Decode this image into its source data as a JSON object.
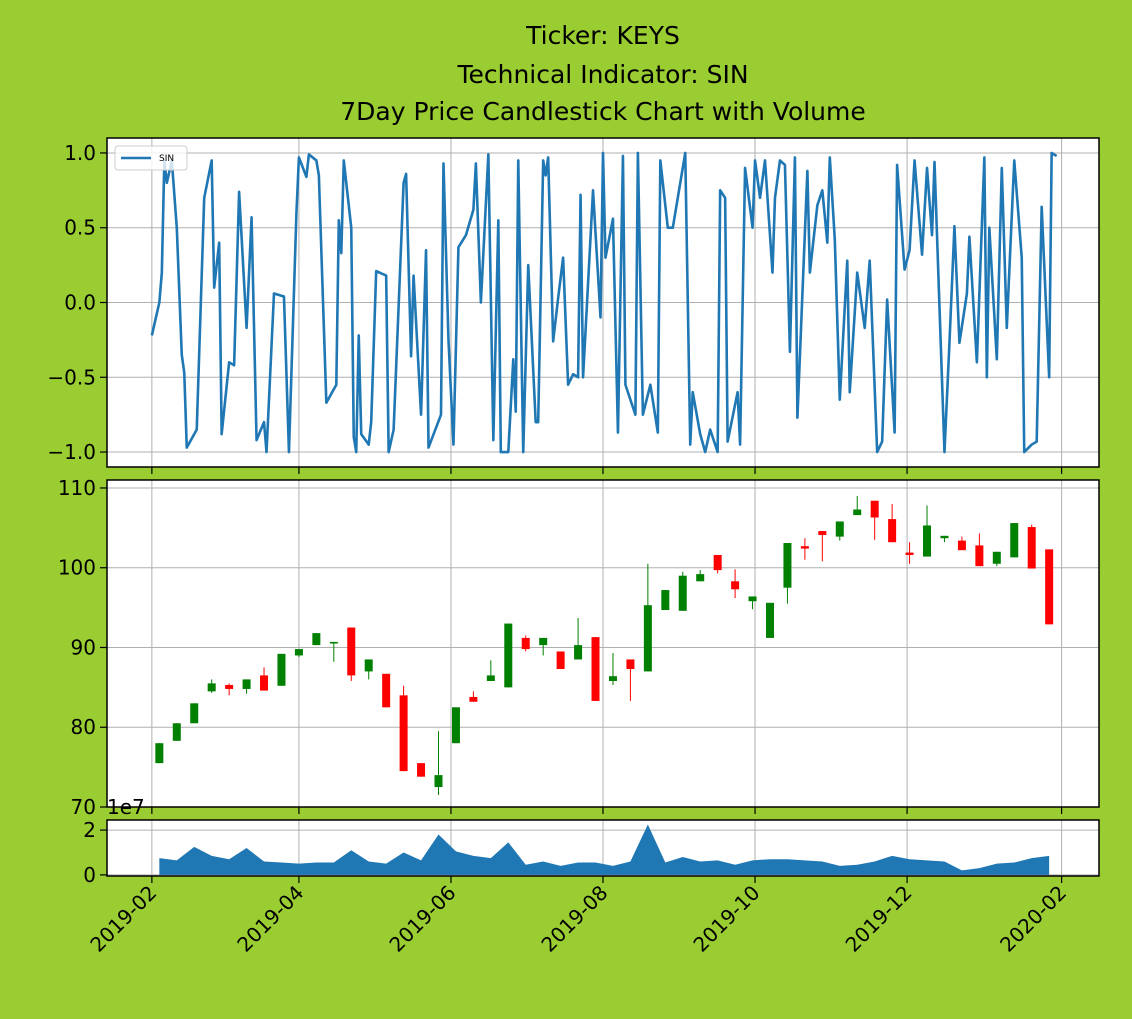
{
  "title": [
    "Ticker: KEYS",
    "Technical Indicator: SIN",
    "7Day Price Candlestick Chart with Volume"
  ],
  "x_axis": {
    "xlim": [
      "2019-01-14",
      "2020-02-16"
    ],
    "xticks": [
      {
        "value": "2019-02-01",
        "label": "2019-02"
      },
      {
        "value": "2019-04-01",
        "label": "2019-04"
      },
      {
        "value": "2019-06-01",
        "label": "2019-06"
      },
      {
        "value": "2019-08-01",
        "label": "2019-08"
      },
      {
        "value": "2019-10-01",
        "label": "2019-10"
      },
      {
        "value": "2019-12-01",
        "label": "2019-12"
      },
      {
        "value": "2020-02-01",
        "label": "2020-02"
      }
    ],
    "grid": true
  },
  "chart_data": [
    {
      "type": "line",
      "legend": "upper left",
      "grid": true,
      "ylim": [
        -1.1,
        1.1
      ],
      "yticks": [
        {
          "value": -1.0,
          "label": "−1.0"
        },
        {
          "value": -0.5,
          "label": "−0.5"
        },
        {
          "value": 0.0,
          "label": "0.0"
        },
        {
          "value": 0.5,
          "label": "0.5"
        },
        {
          "value": 1.0,
          "label": "1.0"
        }
      ],
      "x": [
        "2019-02-01",
        "2019-02-04",
        "2019-02-05",
        "2019-02-06",
        "2019-02-07",
        "2019-02-09",
        "2019-02-11",
        "2019-02-13",
        "2019-02-14",
        "2019-02-15",
        "2019-02-19",
        "2019-02-22",
        "2019-02-25",
        "2019-02-26",
        "2019-02-28",
        "2019-03-01",
        "2019-03-04",
        "2019-03-06",
        "2019-03-08",
        "2019-03-11",
        "2019-03-13",
        "2019-03-15",
        "2019-03-18",
        "2019-03-19",
        "2019-03-22",
        "2019-03-26",
        "2019-03-27",
        "2019-03-28",
        "2019-03-31",
        "2019-04-01",
        "2019-04-04",
        "2019-04-05",
        "2019-04-08",
        "2019-04-09",
        "2019-04-12",
        "2019-04-16",
        "2019-04-17",
        "2019-04-18",
        "2019-04-19",
        "2019-04-22",
        "2019-04-23",
        "2019-04-24",
        "2019-04-25",
        "2019-04-26",
        "2019-04-29",
        "2019-04-30",
        "2019-05-02",
        "2019-05-06",
        "2019-05-07",
        "2019-05-09",
        "2019-05-13",
        "2019-05-14",
        "2019-05-16",
        "2019-05-17",
        "2019-05-20",
        "2019-05-22",
        "2019-05-23",
        "2019-05-28",
        "2019-05-29",
        "2019-05-31",
        "2019-06-02",
        "2019-06-04",
        "2019-06-07",
        "2019-06-10",
        "2019-06-11",
        "2019-06-13",
        "2019-06-16",
        "2019-06-18",
        "2019-06-20",
        "2019-06-21",
        "2019-06-24",
        "2019-06-26",
        "2019-06-27",
        "2019-06-28",
        "2019-06-30",
        "2019-07-02",
        "2019-07-05",
        "2019-07-06",
        "2019-07-08",
        "2019-07-09",
        "2019-07-10",
        "2019-07-12",
        "2019-07-14",
        "2019-07-16",
        "2019-07-18",
        "2019-07-20",
        "2019-07-22",
        "2019-07-23",
        "2019-07-24",
        "2019-07-28",
        "2019-07-31",
        "2019-08-01",
        "2019-08-02",
        "2019-08-05",
        "2019-08-07",
        "2019-08-09",
        "2019-08-10",
        "2019-08-14",
        "2019-08-15",
        "2019-08-17",
        "2019-08-20",
        "2019-08-23",
        "2019-08-24",
        "2019-08-27",
        "2019-08-29",
        "2019-09-03",
        "2019-09-05",
        "2019-09-06",
        "2019-09-09",
        "2019-09-11",
        "2019-09-13",
        "2019-09-16",
        "2019-09-17",
        "2019-09-19",
        "2019-09-20",
        "2019-09-24",
        "2019-09-25",
        "2019-09-27",
        "2019-09-30",
        "2019-10-01",
        "2019-10-03",
        "2019-10-05",
        "2019-10-08",
        "2019-10-09",
        "2019-10-11",
        "2019-10-13",
        "2019-10-15",
        "2019-10-17",
        "2019-10-18",
        "2019-10-22",
        "2019-10-23",
        "2019-10-26",
        "2019-10-28",
        "2019-10-30",
        "2019-10-31",
        "2019-11-02",
        "2019-11-04",
        "2019-11-07",
        "2019-11-08",
        "2019-11-11",
        "2019-11-14",
        "2019-11-16",
        "2019-11-19",
        "2019-11-21",
        "2019-11-23",
        "2019-11-26",
        "2019-11-27",
        "2019-11-30",
        "2019-12-02",
        "2019-12-04",
        "2019-12-07",
        "2019-12-09",
        "2019-12-11",
        "2019-12-12",
        "2019-12-16",
        "2019-12-18",
        "2019-12-20",
        "2019-12-22",
        "2019-12-25",
        "2019-12-26",
        "2019-12-29",
        "2020-01-01",
        "2020-01-02",
        "2020-01-03",
        "2020-01-06",
        "2020-01-08",
        "2020-01-10",
        "2020-01-13",
        "2020-01-16",
        "2020-01-17",
        "2020-01-20",
        "2020-01-22",
        "2020-01-24",
        "2020-01-27",
        "2020-01-28",
        "2020-01-30"
      ],
      "series": [
        {
          "name": "SIN",
          "color": "#1f77b4",
          "values": [
            -0.22,
            0,
            0.2,
            0.95,
            0.8,
            0.95,
            0.5,
            -0.35,
            -0.47,
            -0.97,
            -0.85,
            0.7,
            0.95,
            0.1,
            0.4,
            -0.88,
            -0.4,
            -0.42,
            0.74,
            -0.17,
            0.57,
            -0.92,
            -0.8,
            -1.0,
            0.06,
            0.04,
            -0.48,
            -1.0,
            0.6,
            0.97,
            0.84,
            0.99,
            0.95,
            0.85,
            -0.67,
            -0.55,
            0.55,
            0.33,
            0.95,
            0.5,
            -0.9,
            -1.0,
            -0.22,
            -0.88,
            -0.95,
            -0.8,
            0.21,
            0.18,
            -1.0,
            -0.85,
            0.8,
            0.86,
            -0.36,
            0.18,
            -0.75,
            0.35,
            -0.97,
            -0.75,
            0.93,
            -0.25,
            -0.95,
            0.37,
            0.45,
            0.62,
            0.93,
            0,
            0.99,
            -0.92,
            0.55,
            -1.0,
            -1.0,
            -0.38,
            -0.73,
            0.95,
            -1.0,
            0.25,
            -0.8,
            -0.8,
            0.95,
            0.85,
            0.97,
            -0.26,
            0.03,
            0.3,
            -0.55,
            -0.48,
            -0.5,
            0.72,
            -0.5,
            0.75,
            -0.1,
            1.0,
            0.3,
            0.56,
            -0.87,
            0.98,
            -0.55,
            -0.75,
            1.0,
            -0.75,
            -0.55,
            -0.87,
            0.95,
            0.5,
            0.5,
            1.0,
            -0.95,
            -0.6,
            -0.88,
            -1.0,
            -0.85,
            -1.0,
            0.75,
            0.7,
            -0.93,
            -0.6,
            -0.95,
            0.9,
            0.5,
            0.95,
            0.7,
            0.95,
            0.2,
            0.7,
            0.95,
            0.92,
            -0.33,
            0.97,
            -0.77,
            0.88,
            0.2,
            0.65,
            0.75,
            0.4,
            0.97,
            0.42,
            -0.65,
            0.28,
            -0.6,
            0.2,
            -0.17,
            0.28,
            -1.0,
            -0.93,
            0.02,
            -0.87,
            0.92,
            0.22,
            0.35,
            0.95,
            0.32,
            0.9,
            0.45,
            0.94,
            -1.0,
            -0.27,
            0.51,
            -0.27,
            0.06,
            0.44,
            -0.4,
            0.97,
            -0.5,
            0.5,
            -0.38,
            0.9,
            -0.17,
            0.95,
            0.3,
            -1.0,
            -0.95,
            -0.93,
            0.64,
            -0.5,
            1.0,
            0.98
          ]
        }
      ]
    },
    {
      "type": "candlestick",
      "grid": true,
      "up_color": "green",
      "down_color": "red",
      "ylim": [
        70,
        111
      ],
      "yticks": [
        70,
        80,
        90,
        100,
        110
      ],
      "x": [
        "2019-02-04",
        "2019-02-11",
        "2019-02-18",
        "2019-02-25",
        "2019-03-04",
        "2019-03-11",
        "2019-03-18",
        "2019-03-25",
        "2019-04-01",
        "2019-04-08",
        "2019-04-15",
        "2019-04-22",
        "2019-04-29",
        "2019-05-06",
        "2019-05-13",
        "2019-05-20",
        "2019-05-27",
        "2019-06-03",
        "2019-06-10",
        "2019-06-17",
        "2019-06-24",
        "2019-07-01",
        "2019-07-08",
        "2019-07-15",
        "2019-07-22",
        "2019-07-29",
        "2019-08-05",
        "2019-08-12",
        "2019-08-19",
        "2019-08-26",
        "2019-09-02",
        "2019-09-09",
        "2019-09-16",
        "2019-09-23",
        "2019-09-30",
        "2019-10-07",
        "2019-10-14",
        "2019-10-21",
        "2019-10-28",
        "2019-11-04",
        "2019-11-11",
        "2019-11-18",
        "2019-11-25",
        "2019-12-02",
        "2019-12-09",
        "2019-12-16",
        "2019-12-23",
        "2019-12-30",
        "2020-01-06",
        "2020-01-13",
        "2020-01-20",
        "2020-01-27"
      ],
      "open": [
        75.5,
        78.3,
        80.5,
        84.5,
        85.3,
        84.8,
        86.5,
        85.2,
        89,
        90.3,
        90.5,
        92.5,
        87,
        86.7,
        84,
        75.5,
        72.5,
        78,
        83.8,
        85.8,
        85,
        91.2,
        90.3,
        89.5,
        88.5,
        91.3,
        85.8,
        88.5,
        87,
        94.7,
        94.6,
        98.3,
        101.6,
        98.3,
        95.8,
        91.2,
        97.5,
        102.7,
        104.6,
        103.9,
        106.6,
        108.4,
        106.1,
        101.9,
        101.4,
        103.7,
        103.4,
        102.8,
        100.5,
        101.3,
        105.1,
        102.3
      ],
      "high": [
        78,
        80.5,
        83,
        86,
        85.5,
        86,
        87.5,
        89.2,
        89.8,
        91.8,
        90.7,
        92.5,
        88.5,
        86.7,
        85.2,
        75.5,
        79.5,
        82.5,
        84.5,
        88.4,
        93,
        91.5,
        91.2,
        89.5,
        93.7,
        91.3,
        89.3,
        88.5,
        100.5,
        97.2,
        99.5,
        99.7,
        101.6,
        99.8,
        96.4,
        95.6,
        103.1,
        103.7,
        104.6,
        105.8,
        109,
        108.4,
        108,
        103.2,
        107.8,
        104,
        103.9,
        104.3,
        102,
        105.6,
        105.4,
        102.3
      ],
      "low": [
        75.5,
        78.3,
        80.5,
        84.3,
        84,
        84.2,
        84.6,
        85.2,
        88.8,
        90.3,
        88.2,
        85.8,
        86,
        82.5,
        74.5,
        73.8,
        71.5,
        78,
        83.2,
        85.8,
        85,
        89.5,
        89,
        87.3,
        88.5,
        83.3,
        85.3,
        83.3,
        87,
        94.7,
        94.6,
        98.3,
        99.3,
        96.2,
        94.8,
        91.2,
        95.5,
        101,
        100.8,
        103.4,
        106.6,
        103.5,
        103.2,
        100.5,
        101.4,
        103.2,
        102.2,
        100.2,
        100.2,
        101.3,
        99.9,
        92.9
      ],
      "close": [
        78,
        80.5,
        83,
        85.5,
        84.8,
        86,
        84.6,
        89.2,
        89.8,
        91.8,
        90.7,
        86.5,
        88.5,
        82.5,
        74.5,
        73.8,
        74,
        82.5,
        83.2,
        86.5,
        93,
        89.8,
        91.2,
        87.3,
        90.3,
        83.3,
        86.4,
        87.3,
        95.3,
        97.2,
        99,
        99.2,
        99.7,
        97.3,
        96.4,
        95.6,
        103.1,
        102.4,
        104.1,
        105.8,
        107.3,
        106.3,
        103.2,
        101.6,
        105.3,
        104,
        102.2,
        100.2,
        102,
        105.6,
        99.9,
        92.9
      ]
    },
    {
      "type": "area",
      "grid": true,
      "color": "#1f77b4",
      "offset_label": "1e7",
      "ylim": [
        -0.05,
        2.45
      ],
      "yticks": [
        0,
        2
      ],
      "x": [
        "2019-02-04",
        "2019-02-11",
        "2019-02-18",
        "2019-02-25",
        "2019-03-04",
        "2019-03-11",
        "2019-03-18",
        "2019-03-25",
        "2019-04-01",
        "2019-04-08",
        "2019-04-15",
        "2019-04-22",
        "2019-04-29",
        "2019-05-06",
        "2019-05-13",
        "2019-05-20",
        "2019-05-27",
        "2019-06-03",
        "2019-06-10",
        "2019-06-17",
        "2019-06-24",
        "2019-07-01",
        "2019-07-08",
        "2019-07-15",
        "2019-07-22",
        "2019-07-29",
        "2019-08-05",
        "2019-08-12",
        "2019-08-19",
        "2019-08-26",
        "2019-09-02",
        "2019-09-09",
        "2019-09-16",
        "2019-09-23",
        "2019-09-30",
        "2019-10-07",
        "2019-10-14",
        "2019-10-21",
        "2019-10-28",
        "2019-11-04",
        "2019-11-11",
        "2019-11-18",
        "2019-11-25",
        "2019-12-02",
        "2019-12-09",
        "2019-12-16",
        "2019-12-23",
        "2019-12-30",
        "2020-01-06",
        "2020-01-13",
        "2020-01-20",
        "2020-01-27"
      ],
      "values": [
        0.75,
        0.65,
        1.25,
        0.85,
        0.7,
        1.2,
        0.6,
        0.55,
        0.5,
        0.55,
        0.55,
        1.1,
        0.6,
        0.5,
        1.0,
        0.65,
        1.8,
        1.05,
        0.85,
        0.75,
        1.45,
        0.45,
        0.6,
        0.4,
        0.55,
        0.55,
        0.4,
        0.6,
        2.25,
        0.55,
        0.8,
        0.6,
        0.65,
        0.45,
        0.65,
        0.7,
        0.7,
        0.65,
        0.6,
        0.4,
        0.45,
        0.6,
        0.85,
        0.7,
        0.65,
        0.6,
        0.2,
        0.3,
        0.5,
        0.55,
        0.75,
        0.85
      ]
    }
  ]
}
